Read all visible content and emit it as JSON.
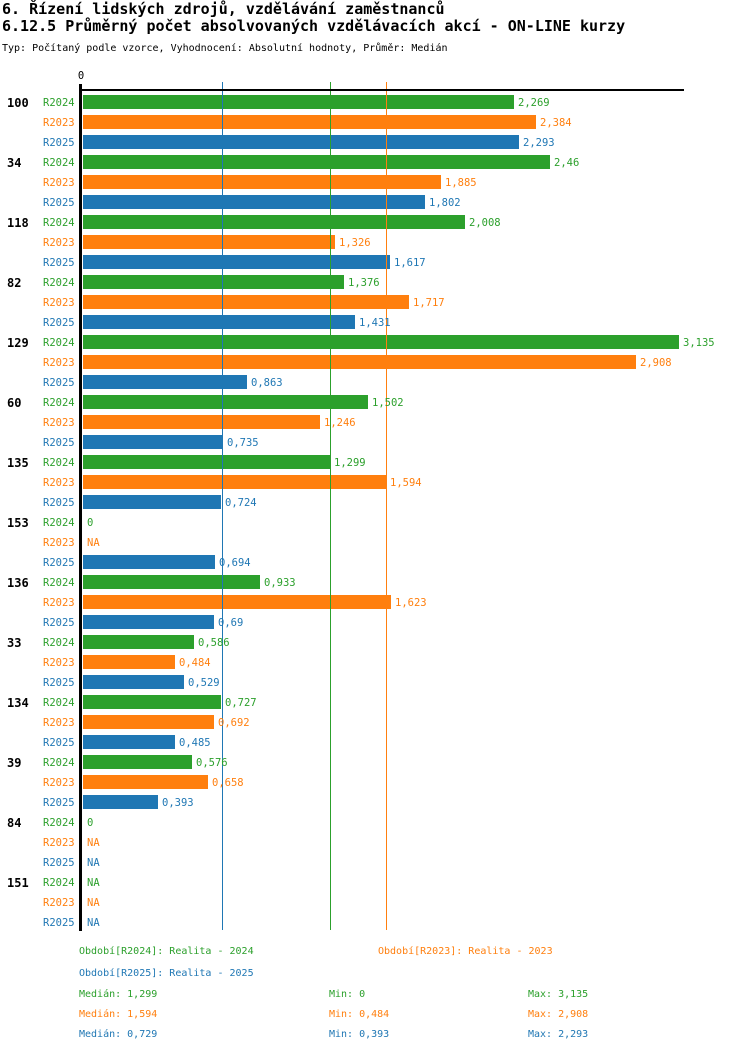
{
  "header": {
    "title": "6. Řízení lidských zdrojů, vzdělávání zaměstnanců",
    "subtitle": "6.12.5 Průměrný počet absolvovaných vzdělávacích akcí - ON-LINE kurzy",
    "meta": "Typ: Počítaný podle vzorce, Vyhodnocení: Absolutní hodnoty, Průměr: Medián"
  },
  "chart_data": {
    "type": "bar",
    "orientation": "horizontal",
    "grid": "median-lines-per-series",
    "legend_position": "bottom",
    "axis": {
      "zero_label": "0",
      "xmin": 0,
      "xmax": 3.16
    },
    "series": [
      {
        "key": "R2024",
        "color": "#2ca02c",
        "legend": "Období[R2024]: Realita - 2024",
        "median": 1.299,
        "min": 0,
        "max": 3.135,
        "stats": {
          "median_label": "Medián: 1,299",
          "min_label": "Min: 0",
          "max_label": "Max: 3,135"
        }
      },
      {
        "key": "R2023",
        "color": "#ff7f0e",
        "legend": "Období[R2023]: Realita - 2023",
        "median": 1.594,
        "min": 0.484,
        "max": 2.908,
        "stats": {
          "median_label": "Medián: 1,594",
          "min_label": "Min: 0,484",
          "max_label": "Max: 2,908"
        }
      },
      {
        "key": "R2025",
        "color": "#1f77b4",
        "legend": "Období[R2025]: Realita - 2025",
        "median": 0.729,
        "min": 0.393,
        "max": 2.293,
        "stats": {
          "median_label": "Medián: 0,729",
          "min_label": "Min: 0,393",
          "max_label": "Max: 2,293"
        }
      }
    ],
    "groups": [
      {
        "label": "100",
        "values": [
          {
            "v": 2.269,
            "text": "2,269"
          },
          {
            "v": 2.384,
            "text": "2,384"
          },
          {
            "v": 2.293,
            "text": "2,293"
          }
        ]
      },
      {
        "label": "34",
        "values": [
          {
            "v": 2.46,
            "text": "2,46"
          },
          {
            "v": 1.885,
            "text": "1,885"
          },
          {
            "v": 1.802,
            "text": "1,802"
          }
        ]
      },
      {
        "label": "118",
        "values": [
          {
            "v": 2.008,
            "text": "2,008"
          },
          {
            "v": 1.326,
            "text": "1,326"
          },
          {
            "v": 1.617,
            "text": "1,617"
          }
        ]
      },
      {
        "label": "82",
        "values": [
          {
            "v": 1.376,
            "text": "1,376"
          },
          {
            "v": 1.717,
            "text": "1,717"
          },
          {
            "v": 1.431,
            "text": "1,431"
          }
        ]
      },
      {
        "label": "129",
        "values": [
          {
            "v": 3.135,
            "text": "3,135"
          },
          {
            "v": 2.908,
            "text": "2,908"
          },
          {
            "v": 0.863,
            "text": "0,863"
          }
        ]
      },
      {
        "label": "60",
        "values": [
          {
            "v": 1.502,
            "text": "1,502"
          },
          {
            "v": 1.246,
            "text": "1,246"
          },
          {
            "v": 0.735,
            "text": "0,735"
          }
        ]
      },
      {
        "label": "135",
        "values": [
          {
            "v": 1.299,
            "text": "1,299"
          },
          {
            "v": 1.594,
            "text": "1,594"
          },
          {
            "v": 0.724,
            "text": "0,724"
          }
        ]
      },
      {
        "label": "153",
        "values": [
          {
            "v": 0,
            "text": "0"
          },
          {
            "v": null,
            "text": "NA"
          },
          {
            "v": 0.694,
            "text": "0,694"
          }
        ]
      },
      {
        "label": "136",
        "values": [
          {
            "v": 0.933,
            "text": "0,933"
          },
          {
            "v": 1.623,
            "text": "1,623"
          },
          {
            "v": 0.69,
            "text": "0,69"
          }
        ]
      },
      {
        "label": "33",
        "values": [
          {
            "v": 0.586,
            "text": "0,586"
          },
          {
            "v": 0.484,
            "text": "0,484"
          },
          {
            "v": 0.529,
            "text": "0,529"
          }
        ]
      },
      {
        "label": "134",
        "values": [
          {
            "v": 0.727,
            "text": "0,727"
          },
          {
            "v": 0.692,
            "text": "0,692"
          },
          {
            "v": 0.485,
            "text": "0,485"
          }
        ]
      },
      {
        "label": "39",
        "values": [
          {
            "v": 0.576,
            "text": "0,576"
          },
          {
            "v": 0.658,
            "text": "0,658"
          },
          {
            "v": 0.393,
            "text": "0,393"
          }
        ]
      },
      {
        "label": "84",
        "values": [
          {
            "v": 0,
            "text": "0"
          },
          {
            "v": null,
            "text": "NA"
          },
          {
            "v": null,
            "text": "NA"
          }
        ]
      },
      {
        "label": "151",
        "values": [
          {
            "v": null,
            "text": "NA"
          },
          {
            "v": null,
            "text": "NA"
          },
          {
            "v": null,
            "text": "NA"
          }
        ]
      }
    ]
  }
}
